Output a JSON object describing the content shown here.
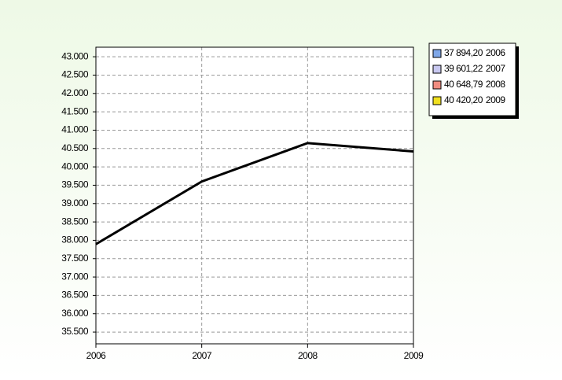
{
  "chart_data": {
    "type": "line",
    "categories": [
      "2006",
      "2007",
      "2008",
      "2009"
    ],
    "values": [
      37894.2,
      39601.22,
      40648.79,
      40420.2
    ],
    "value_labels": [
      "37 894,20",
      "39 601,22",
      "40 648,79",
      "40 420,20"
    ],
    "color": "#000000",
    "legend_colors": [
      "#7fa7e8",
      "#c8c8f0",
      "#f08c80",
      "#f0e020"
    ],
    "ylim": [
      35180,
      43260
    ],
    "yticks": [
      {
        "value": 43000,
        "label": "43.000"
      },
      {
        "value": 42500,
        "label": "42.500"
      },
      {
        "value": 42000,
        "label": "42.000"
      },
      {
        "value": 41500,
        "label": "41.500"
      },
      {
        "value": 41000,
        "label": "41.000"
      },
      {
        "value": 40500,
        "label": "40.500"
      },
      {
        "value": 40000,
        "label": "40.000"
      },
      {
        "value": 39500,
        "label": "39.500"
      },
      {
        "value": 39000,
        "label": "39.000"
      },
      {
        "value": 38500,
        "label": "38.500"
      },
      {
        "value": 38000,
        "label": "38.000"
      },
      {
        "value": 37500,
        "label": "37.500"
      },
      {
        "value": 37000,
        "label": "37.000"
      },
      {
        "value": 36500,
        "label": "36.500"
      },
      {
        "value": 36000,
        "label": "36.000"
      },
      {
        "value": 35500,
        "label": "35.500"
      }
    ],
    "grid": true,
    "legend": "top-right"
  }
}
